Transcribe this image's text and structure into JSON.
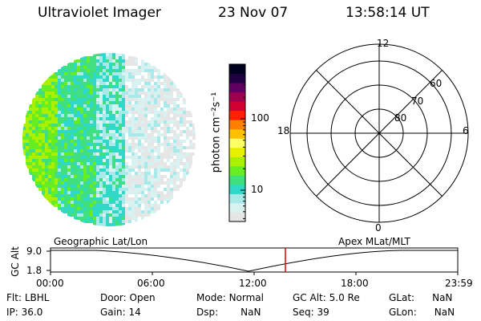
{
  "header": {
    "title": "Ultraviolet Imager",
    "date": "23 Nov 07",
    "time": "13:58:14 UT"
  },
  "colorbar": {
    "label": "photon cm⁻²s⁻¹",
    "ticks": [
      {
        "value": 100,
        "label": "100"
      },
      {
        "value": 10,
        "label": "10"
      }
    ],
    "colors": [
      "#e6e6e6",
      "#d8f2f2",
      "#a8eaea",
      "#30d8c8",
      "#40e080",
      "#66ee22",
      "#aaf000",
      "#e6f000",
      "#ffff66",
      "#ffc000",
      "#ff8000",
      "#ff2000",
      "#d00030",
      "#a00050",
      "#600060",
      "#200040",
      "#000020"
    ]
  },
  "polar_grid": {
    "mlt_labels": [
      "12",
      "18",
      "6",
      "0"
    ],
    "mlat_labels": [
      "60",
      "70",
      "80"
    ]
  },
  "timeline": {
    "left_label": "Geographic Lat/Lon",
    "right_label": "Apex MLat/MLT",
    "axis_label": "GC Alt",
    "y_ticks": [
      "9.0",
      "1.8"
    ],
    "x_ticks": [
      "00:00",
      "06:00",
      "12:00",
      "18:00",
      "23:59"
    ],
    "current_time_marker": "13:58"
  },
  "info": {
    "row1": [
      {
        "key": "Flt:",
        "value": "LBHL"
      },
      {
        "key": "Door:",
        "value": "Open"
      },
      {
        "key": "Mode:",
        "value": "Normal"
      },
      {
        "key": "GC Alt:",
        "value": "5.0 Re"
      },
      {
        "key": "GLat:",
        "value": "NaN"
      }
    ],
    "row2": [
      {
        "key": "IP:",
        "value": "36.0"
      },
      {
        "key": "Gain:",
        "value": "14"
      },
      {
        "key": "Dsp:",
        "value": "NaN"
      },
      {
        "key": "Seq:",
        "value": "39"
      },
      {
        "key": "GLon:",
        "value": "NaN"
      }
    ]
  },
  "colors": {
    "marker": "#e00000",
    "axis": "#000000"
  }
}
